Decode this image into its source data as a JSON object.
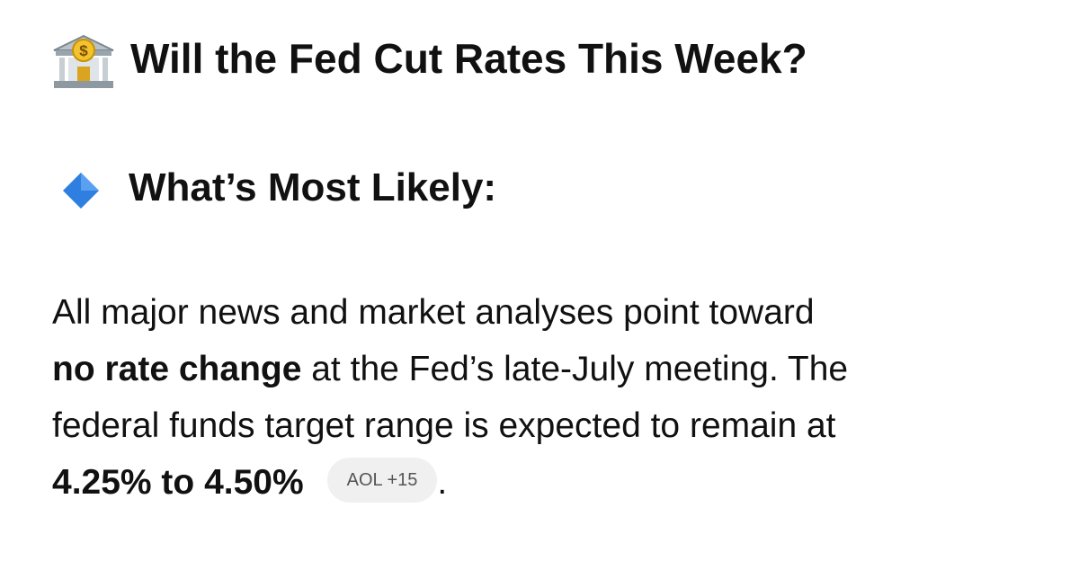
{
  "header": {
    "title": "Will the Fed Cut Rates This Week?"
  },
  "section": {
    "heading": "What’s Most Likely:"
  },
  "paragraph": {
    "lines": [
      [
        {
          "text": "All major news and market analyses point toward",
          "bold": false
        }
      ],
      [
        {
          "text": "no rate change",
          "bold": true
        },
        {
          "text": " at the Fed’s late-July meeting. The",
          "bold": false
        }
      ],
      [
        {
          "text": "federal funds target range is expected to remain at",
          "bold": false
        }
      ],
      [
        {
          "text": "4.25% to 4.50%",
          "bold": true
        }
      ]
    ],
    "citation": "AOL +15",
    "end": "."
  }
}
